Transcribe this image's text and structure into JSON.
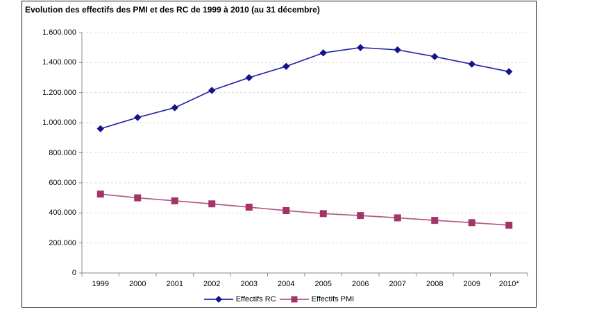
{
  "chart_data": {
    "type": "line",
    "title": "Evolution des effectifs des PMI et des RC de 1999 à 2010 (au 31 décembre)",
    "categories": [
      "1999",
      "2000",
      "2001",
      "2002",
      "2003",
      "2004",
      "2005",
      "2006",
      "2007",
      "2008",
      "2009",
      "2010*"
    ],
    "series": [
      {
        "name": "Effectifs RC",
        "marker": "diamond",
        "line_color": "#2727a8",
        "marker_color": "#13138c",
        "values": [
          960000,
          1035000,
          1100000,
          1215000,
          1300000,
          1375000,
          1465000,
          1500000,
          1485000,
          1440000,
          1390000,
          1340000
        ]
      },
      {
        "name": "Effectifs PMI",
        "marker": "square",
        "line_color": "#b15a86",
        "marker_color": "#a23568",
        "values": [
          525000,
          500000,
          480000,
          460000,
          438000,
          415000,
          395000,
          382000,
          367000,
          350000,
          335000,
          318000
        ]
      }
    ],
    "y_axis": {
      "min": 0,
      "max": 1600000,
      "tick_step": 200000,
      "tick_labels": [
        "0",
        "200.000",
        "400.000",
        "600.000",
        "800.000",
        "1.000.000",
        "1.200.000",
        "1.400.000",
        "1.600.000"
      ]
    },
    "x_axis": {
      "tick_position": "between-categories"
    },
    "grid": {
      "horizontal": true,
      "style": "dashed",
      "color": "#d9d9d9"
    },
    "axis_color": "#8a8a8a",
    "text_color": "#000000",
    "legend_position": "bottom",
    "plot_background": "#ffffff"
  }
}
